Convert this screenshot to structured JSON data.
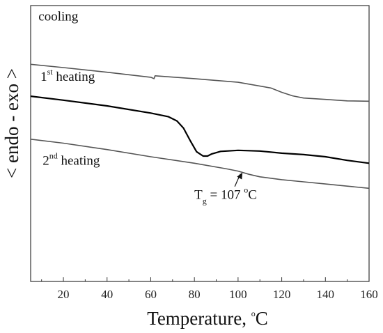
{
  "chart_data": {
    "type": "line",
    "xlabel": "Temperature, ",
    "xlabel_unit": "C",
    "xlabel_unit_sup": "o",
    "ylabel": "< endo - exo >",
    "xlim": [
      5,
      160
    ],
    "x_ticks": [
      20,
      40,
      60,
      80,
      100,
      120,
      140,
      160
    ],
    "y_ticks_shown": false,
    "grid": false,
    "legend": "none",
    "series": [
      {
        "name": "cooling",
        "color": "#555555",
        "stroke": "thin",
        "points": [
          [
            5,
            1.18
          ],
          [
            20,
            1.135
          ],
          [
            40,
            1.07
          ],
          [
            60,
            1.0
          ],
          [
            61.5,
            0.98
          ],
          [
            62,
            1.02
          ],
          [
            80,
            0.98
          ],
          [
            100,
            0.93
          ],
          [
            115,
            0.85
          ],
          [
            120,
            0.79
          ],
          [
            125,
            0.74
          ],
          [
            130,
            0.71
          ],
          [
            140,
            0.69
          ],
          [
            150,
            0.67
          ],
          [
            160,
            0.665
          ]
        ]
      },
      {
        "name": "1st heating",
        "color": "#000000",
        "stroke": "thick",
        "points": [
          [
            5,
            0.735
          ],
          [
            20,
            0.68
          ],
          [
            40,
            0.6
          ],
          [
            60,
            0.5
          ],
          [
            68,
            0.45
          ],
          [
            72,
            0.39
          ],
          [
            75,
            0.29
          ],
          [
            78,
            0.12
          ],
          [
            81,
            -0.04
          ],
          [
            84,
            -0.1
          ],
          [
            86,
            -0.1
          ],
          [
            88,
            -0.07
          ],
          [
            92,
            -0.035
          ],
          [
            100,
            -0.02
          ],
          [
            110,
            -0.03
          ],
          [
            120,
            -0.06
          ],
          [
            130,
            -0.08
          ],
          [
            140,
            -0.11
          ],
          [
            150,
            -0.16
          ],
          [
            160,
            -0.2
          ]
        ]
      },
      {
        "name": "2nd heating",
        "color": "#555555",
        "stroke": "thin",
        "points": [
          [
            5,
            0.135
          ],
          [
            20,
            0.08
          ],
          [
            40,
            -0.01
          ],
          [
            60,
            -0.11
          ],
          [
            80,
            -0.2
          ],
          [
            95,
            -0.28
          ],
          [
            100,
            -0.31
          ],
          [
            105,
            -0.355
          ],
          [
            110,
            -0.39
          ],
          [
            120,
            -0.43
          ],
          [
            130,
            -0.46
          ],
          [
            140,
            -0.49
          ],
          [
            150,
            -0.52
          ],
          [
            160,
            -0.55
          ]
        ]
      }
    ],
    "annotations": [
      {
        "text": "cooling",
        "x": 8.6,
        "y": 1.79
      },
      {
        "text": "1",
        "sup": "st",
        "text_after": " heating",
        "x": 9.5,
        "y": 0.95
      },
      {
        "text": "2",
        "sup": "nd",
        "text_after": " heating",
        "x": 10.5,
        "y": -0.22
      },
      {
        "text": "T",
        "sub": "g",
        "text_after": " = 107 ",
        "sup2": "o",
        "text_end": "C",
        "x": 80.0,
        "y": -0.7,
        "arrow_to": [
          102,
          -0.33
        ]
      }
    ]
  }
}
